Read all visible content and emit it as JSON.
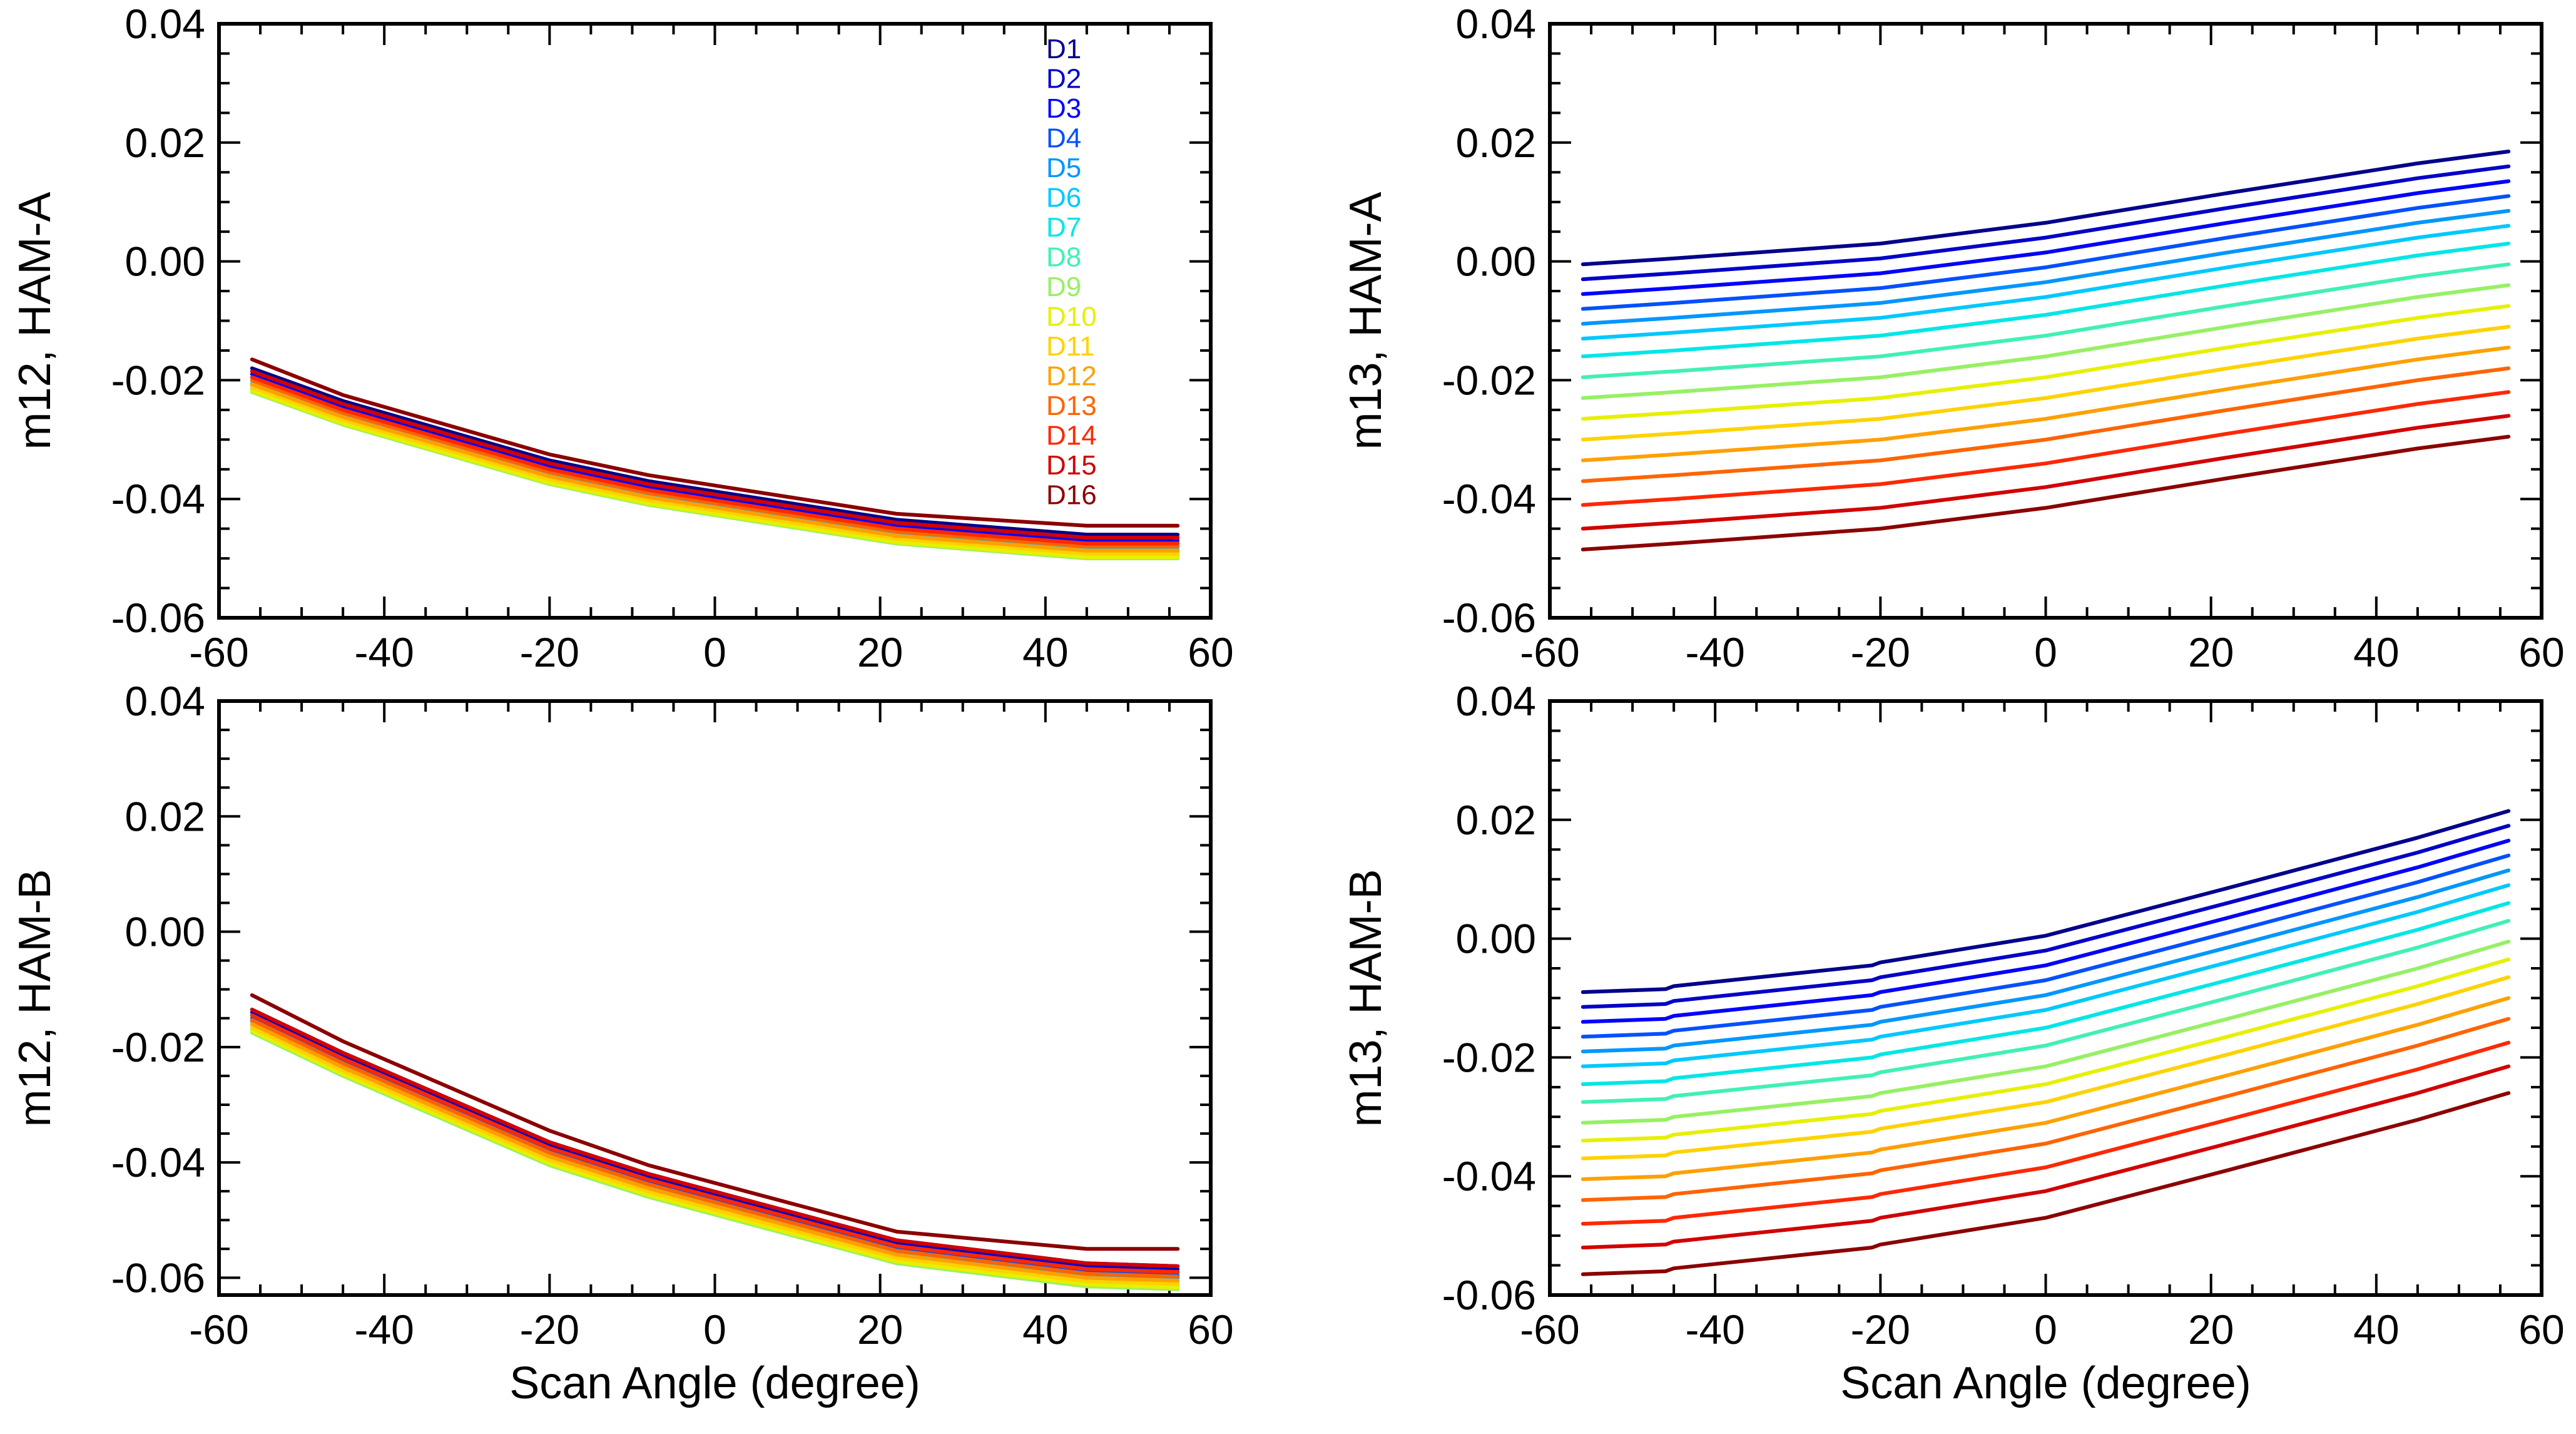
{
  "figure": {
    "x_axis_title": "Scan Angle (degree)"
  },
  "legend": {
    "entries": [
      "D1",
      "D2",
      "D3",
      "D4",
      "D5",
      "D6",
      "D7",
      "D8",
      "D9",
      "D10",
      "D11",
      "D12",
      "D13",
      "D14",
      "D15",
      "D16"
    ],
    "colors": [
      "#00008b",
      "#0000c8",
      "#0000ff",
      "#0050ff",
      "#0096ff",
      "#00c8ff",
      "#00e6e6",
      "#40f0b4",
      "#96f064",
      "#e6f000",
      "#ffd200",
      "#ffa000",
      "#ff6400",
      "#ff2800",
      "#d20000",
      "#8b0000"
    ]
  },
  "chart_data": [
    {
      "type": "line",
      "id": "m12-ham-a",
      "ylabel": "m12, HAM-A",
      "xlabel": "",
      "xlim": [
        -60,
        60
      ],
      "ylim": [
        -0.06,
        0.04
      ],
      "xticks": [
        "-60",
        "-40",
        "-20",
        "0",
        "20",
        "40",
        "60"
      ],
      "yticks": [
        "-0.06",
        "-0.04",
        "-0.02",
        "0.00",
        "0.02",
        "0.04"
      ],
      "x": [
        -56,
        -45,
        -20,
        -8,
        22,
        45,
        56
      ],
      "series": [
        {
          "name": "D1",
          "values": [
            -0.018,
            -0.0235,
            -0.0335,
            -0.037,
            -0.0435,
            -0.046,
            -0.046
          ]
        },
        {
          "name": "D2",
          "values": [
            -0.0185,
            -0.024,
            -0.034,
            -0.0375,
            -0.044,
            -0.0465,
            -0.0465
          ]
        },
        {
          "name": "D3",
          "values": [
            -0.019,
            -0.0245,
            -0.0345,
            -0.038,
            -0.0445,
            -0.047,
            -0.047
          ]
        },
        {
          "name": "D4",
          "values": [
            -0.0195,
            -0.025,
            -0.035,
            -0.0385,
            -0.045,
            -0.0475,
            -0.0475
          ]
        },
        {
          "name": "D5",
          "values": [
            -0.02,
            -0.0255,
            -0.0355,
            -0.039,
            -0.0455,
            -0.048,
            -0.048
          ]
        },
        {
          "name": "D6",
          "values": [
            -0.0205,
            -0.026,
            -0.036,
            -0.0395,
            -0.046,
            -0.0485,
            -0.0485
          ]
        },
        {
          "name": "D7",
          "values": [
            -0.021,
            -0.0265,
            -0.0365,
            -0.04,
            -0.0465,
            -0.049,
            -0.049
          ]
        },
        {
          "name": "D8",
          "values": [
            -0.0215,
            -0.027,
            -0.037,
            -0.0405,
            -0.047,
            -0.0495,
            -0.0495
          ]
        },
        {
          "name": "D9",
          "values": [
            -0.022,
            -0.0275,
            -0.0375,
            -0.041,
            -0.0475,
            -0.05,
            -0.05
          ]
        },
        {
          "name": "D10",
          "values": [
            -0.0218,
            -0.0273,
            -0.0373,
            -0.0408,
            -0.0473,
            -0.0498,
            -0.0498
          ]
        },
        {
          "name": "D11",
          "values": [
            -0.0212,
            -0.0267,
            -0.0367,
            -0.0402,
            -0.0467,
            -0.0492,
            -0.0492
          ]
        },
        {
          "name": "D12",
          "values": [
            -0.0207,
            -0.0262,
            -0.0362,
            -0.0397,
            -0.0462,
            -0.0487,
            -0.0487
          ]
        },
        {
          "name": "D13",
          "values": [
            -0.02,
            -0.0255,
            -0.0355,
            -0.039,
            -0.0455,
            -0.048,
            -0.048
          ]
        },
        {
          "name": "D14",
          "values": [
            -0.0195,
            -0.025,
            -0.035,
            -0.0385,
            -0.045,
            -0.0475,
            -0.0475
          ]
        },
        {
          "name": "D15",
          "values": [
            -0.0185,
            -0.024,
            -0.034,
            -0.0375,
            -0.044,
            -0.0465,
            -0.0465
          ]
        },
        {
          "name": "D16",
          "values": [
            -0.0165,
            -0.0225,
            -0.0325,
            -0.036,
            -0.0425,
            -0.0445,
            -0.0445
          ]
        }
      ]
    },
    {
      "type": "line",
      "id": "m13-ham-a",
      "ylabel": "m13, HAM-A",
      "xlabel": "",
      "xlim": [
        -60,
        60
      ],
      "ylim": [
        -0.06,
        0.04
      ],
      "xticks": [
        "-60",
        "-40",
        "-20",
        "0",
        "20",
        "40",
        "60"
      ],
      "yticks": [
        "-0.06",
        "-0.04",
        "-0.02",
        "0.00",
        "0.02",
        "0.04"
      ],
      "x": [
        -56,
        -45,
        -20,
        0,
        22,
        45,
        56
      ],
      "series": [
        {
          "name": "D1",
          "values": [
            -0.0005,
            0.0005,
            0.003,
            0.0065,
            0.0115,
            0.0165,
            0.0185
          ]
        },
        {
          "name": "D2",
          "values": [
            -0.003,
            -0.002,
            0.0005,
            0.004,
            0.009,
            0.014,
            0.016
          ]
        },
        {
          "name": "D3",
          "values": [
            -0.0055,
            -0.0045,
            -0.002,
            0.0015,
            0.0065,
            0.0115,
            0.0135
          ]
        },
        {
          "name": "D4",
          "values": [
            -0.008,
            -0.007,
            -0.0045,
            -0.001,
            0.004,
            0.009,
            0.011
          ]
        },
        {
          "name": "D5",
          "values": [
            -0.0105,
            -0.0095,
            -0.007,
            -0.0035,
            0.0015,
            0.0065,
            0.0085
          ]
        },
        {
          "name": "D6",
          "values": [
            -0.013,
            -0.012,
            -0.0095,
            -0.006,
            -0.001,
            0.004,
            0.006
          ]
        },
        {
          "name": "D7",
          "values": [
            -0.016,
            -0.015,
            -0.0125,
            -0.009,
            -0.004,
            0.001,
            0.003
          ]
        },
        {
          "name": "D8",
          "values": [
            -0.0195,
            -0.0185,
            -0.016,
            -0.0125,
            -0.0075,
            -0.0025,
            -0.0005
          ]
        },
        {
          "name": "D9",
          "values": [
            -0.023,
            -0.022,
            -0.0195,
            -0.016,
            -0.011,
            -0.006,
            -0.004
          ]
        },
        {
          "name": "D10",
          "values": [
            -0.0265,
            -0.0255,
            -0.023,
            -0.0195,
            -0.0145,
            -0.0095,
            -0.0075
          ]
        },
        {
          "name": "D11",
          "values": [
            -0.03,
            -0.029,
            -0.0265,
            -0.023,
            -0.018,
            -0.013,
            -0.011
          ]
        },
        {
          "name": "D12",
          "values": [
            -0.0335,
            -0.0325,
            -0.03,
            -0.0265,
            -0.0215,
            -0.0165,
            -0.0145
          ]
        },
        {
          "name": "D13",
          "values": [
            -0.037,
            -0.036,
            -0.0335,
            -0.03,
            -0.025,
            -0.02,
            -0.018
          ]
        },
        {
          "name": "D14",
          "values": [
            -0.041,
            -0.04,
            -0.0375,
            -0.034,
            -0.029,
            -0.024,
            -0.022
          ]
        },
        {
          "name": "D15",
          "values": [
            -0.045,
            -0.044,
            -0.0415,
            -0.038,
            -0.033,
            -0.028,
            -0.026
          ]
        },
        {
          "name": "D16",
          "values": [
            -0.0485,
            -0.0475,
            -0.045,
            -0.0415,
            -0.0365,
            -0.0315,
            -0.0295
          ]
        }
      ]
    },
    {
      "type": "line",
      "id": "m12-ham-b",
      "ylabel": "m12, HAM-B",
      "xlabel": "Scan Angle (degree)",
      "xlim": [
        -60,
        60
      ],
      "ylim": [
        -0.063,
        0.04
      ],
      "xticks": [
        "-60",
        "-40",
        "-20",
        "0",
        "20",
        "40",
        "60"
      ],
      "yticks": [
        "-0.06",
        "-0.04",
        "-0.02",
        "0.00",
        "0.02",
        "0.04"
      ],
      "x": [
        -56,
        -45,
        -20,
        -8,
        22,
        45,
        56
      ],
      "series": [
        {
          "name": "D1",
          "values": [
            -0.0135,
            -0.021,
            -0.0365,
            -0.042,
            -0.0535,
            -0.0575,
            -0.058
          ]
        },
        {
          "name": "D2",
          "values": [
            -0.014,
            -0.0215,
            -0.037,
            -0.0425,
            -0.054,
            -0.058,
            -0.0585
          ]
        },
        {
          "name": "D3",
          "values": [
            -0.0145,
            -0.022,
            -0.0375,
            -0.043,
            -0.0545,
            -0.0585,
            -0.059
          ]
        },
        {
          "name": "D4",
          "values": [
            -0.015,
            -0.0225,
            -0.038,
            -0.0435,
            -0.055,
            -0.059,
            -0.0595
          ]
        },
        {
          "name": "D5",
          "values": [
            -0.0155,
            -0.023,
            -0.0385,
            -0.044,
            -0.0555,
            -0.0595,
            -0.06
          ]
        },
        {
          "name": "D6",
          "values": [
            -0.016,
            -0.0235,
            -0.039,
            -0.0445,
            -0.056,
            -0.06,
            -0.0605
          ]
        },
        {
          "name": "D7",
          "values": [
            -0.0165,
            -0.024,
            -0.0395,
            -0.045,
            -0.0565,
            -0.0605,
            -0.061
          ]
        },
        {
          "name": "D8",
          "values": [
            -0.017,
            -0.0245,
            -0.04,
            -0.0455,
            -0.057,
            -0.061,
            -0.0615
          ]
        },
        {
          "name": "D9",
          "values": [
            -0.0175,
            -0.025,
            -0.0405,
            -0.046,
            -0.0575,
            -0.0615,
            -0.062
          ]
        },
        {
          "name": "D10",
          "values": [
            -0.0172,
            -0.0247,
            -0.0402,
            -0.0457,
            -0.0572,
            -0.0612,
            -0.0617
          ]
        },
        {
          "name": "D11",
          "values": [
            -0.0166,
            -0.0241,
            -0.0396,
            -0.0451,
            -0.0566,
            -0.0606,
            -0.0611
          ]
        },
        {
          "name": "D12",
          "values": [
            -0.016,
            -0.0235,
            -0.039,
            -0.0445,
            -0.056,
            -0.06,
            -0.0605
          ]
        },
        {
          "name": "D13",
          "values": [
            -0.0153,
            -0.0228,
            -0.0383,
            -0.0438,
            -0.0553,
            -0.0593,
            -0.0598
          ]
        },
        {
          "name": "D14",
          "values": [
            -0.0145,
            -0.022,
            -0.0375,
            -0.043,
            -0.0545,
            -0.0585,
            -0.059
          ]
        },
        {
          "name": "D15",
          "values": [
            -0.0135,
            -0.021,
            -0.0365,
            -0.042,
            -0.0535,
            -0.0575,
            -0.058
          ]
        },
        {
          "name": "D16",
          "values": [
            -0.011,
            -0.019,
            -0.0345,
            -0.0405,
            -0.052,
            -0.055,
            -0.055
          ]
        }
      ]
    },
    {
      "type": "line",
      "id": "m13-ham-b",
      "ylabel": "m13, HAM-B",
      "xlabel": "Scan Angle (degree)",
      "xlim": [
        -60,
        60
      ],
      "ylim": [
        -0.06,
        0.04
      ],
      "xticks": [
        "-60",
        "-40",
        "-20",
        "0",
        "20",
        "40",
        "60"
      ],
      "yticks": [
        "-0.06",
        "-0.04",
        "-0.02",
        "0.00",
        "0.02",
        "0.04"
      ],
      "x": [
        -56,
        -46,
        -45,
        -21,
        -20,
        0,
        22,
        45,
        56
      ],
      "series": [
        {
          "name": "D1",
          "values": [
            -0.009,
            -0.0085,
            -0.008,
            -0.0045,
            -0.004,
            0.0005,
            0.0085,
            0.017,
            0.0215
          ]
        },
        {
          "name": "D2",
          "values": [
            -0.0115,
            -0.011,
            -0.0105,
            -0.007,
            -0.0065,
            -0.002,
            0.006,
            0.0145,
            0.019
          ]
        },
        {
          "name": "D3",
          "values": [
            -0.014,
            -0.0135,
            -0.013,
            -0.0095,
            -0.009,
            -0.0045,
            0.0035,
            0.012,
            0.0165
          ]
        },
        {
          "name": "D4",
          "values": [
            -0.0165,
            -0.016,
            -0.0155,
            -0.012,
            -0.0115,
            -0.007,
            0.001,
            0.0095,
            0.014
          ]
        },
        {
          "name": "D5",
          "values": [
            -0.019,
            -0.0185,
            -0.018,
            -0.0145,
            -0.014,
            -0.0095,
            -0.0015,
            0.007,
            0.0115
          ]
        },
        {
          "name": "D6",
          "values": [
            -0.0215,
            -0.021,
            -0.0205,
            -0.017,
            -0.0165,
            -0.012,
            -0.004,
            0.0045,
            0.009
          ]
        },
        {
          "name": "D7",
          "values": [
            -0.0245,
            -0.024,
            -0.0235,
            -0.02,
            -0.0195,
            -0.015,
            -0.007,
            0.0015,
            0.006
          ]
        },
        {
          "name": "D8",
          "values": [
            -0.0275,
            -0.027,
            -0.0265,
            -0.023,
            -0.0225,
            -0.018,
            -0.01,
            -0.0015,
            0.003
          ]
        },
        {
          "name": "D9",
          "values": [
            -0.031,
            -0.0305,
            -0.03,
            -0.0265,
            -0.026,
            -0.0215,
            -0.0135,
            -0.005,
            -0.0005
          ]
        },
        {
          "name": "D10",
          "values": [
            -0.034,
            -0.0335,
            -0.033,
            -0.0295,
            -0.029,
            -0.0245,
            -0.0165,
            -0.008,
            -0.0035
          ]
        },
        {
          "name": "D11",
          "values": [
            -0.037,
            -0.0365,
            -0.036,
            -0.0325,
            -0.032,
            -0.0275,
            -0.0195,
            -0.011,
            -0.0065
          ]
        },
        {
          "name": "D12",
          "values": [
            -0.0405,
            -0.04,
            -0.0395,
            -0.036,
            -0.0355,
            -0.031,
            -0.023,
            -0.0145,
            -0.01
          ]
        },
        {
          "name": "D13",
          "values": [
            -0.044,
            -0.0435,
            -0.043,
            -0.0395,
            -0.039,
            -0.0345,
            -0.0265,
            -0.018,
            -0.0135
          ]
        },
        {
          "name": "D14",
          "values": [
            -0.048,
            -0.0475,
            -0.047,
            -0.0435,
            -0.043,
            -0.0385,
            -0.0305,
            -0.022,
            -0.0175
          ]
        },
        {
          "name": "D15",
          "values": [
            -0.052,
            -0.0515,
            -0.051,
            -0.0475,
            -0.047,
            -0.0425,
            -0.0345,
            -0.026,
            -0.0215
          ]
        },
        {
          "name": "D16",
          "values": [
            -0.0565,
            -0.056,
            -0.0555,
            -0.052,
            -0.0515,
            -0.047,
            -0.039,
            -0.0305,
            -0.026
          ]
        }
      ]
    }
  ]
}
